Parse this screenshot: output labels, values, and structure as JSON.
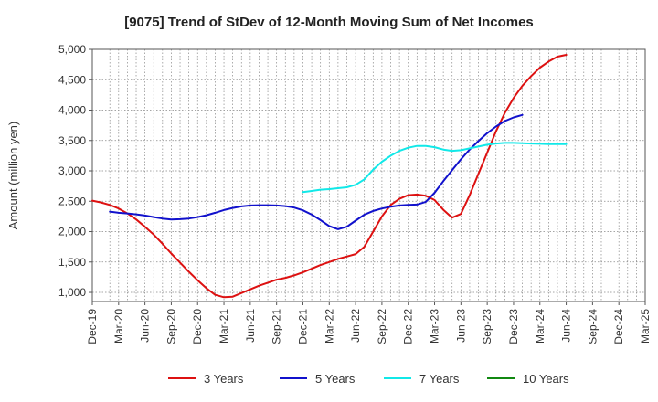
{
  "chart_data": {
    "type": "line",
    "title": "[9075]  Trend of StDev of 12-Month Moving Sum of Net Incomes",
    "xlabel": "",
    "ylabel": "Amount (million yen)",
    "x_tick_labels": [
      "Dec-19",
      "Mar-20",
      "Jun-20",
      "Sep-20",
      "Dec-20",
      "Mar-21",
      "Jun-21",
      "Sep-21",
      "Dec-21",
      "Mar-22",
      "Jun-22",
      "Sep-22",
      "Dec-22",
      "Mar-23",
      "Jun-23",
      "Sep-23",
      "Dec-23",
      "Mar-24",
      "Jun-24",
      "Sep-24",
      "Dec-24",
      "Mar-25"
    ],
    "y_tick_labels": [
      "1,000",
      "1,500",
      "2,000",
      "2,500",
      "3,000",
      "3,500",
      "4,000",
      "4,500",
      "5,000"
    ],
    "y_ticks": [
      1000,
      1500,
      2000,
      2500,
      3000,
      3500,
      4000,
      4500,
      5000
    ],
    "ylim": [
      850,
      5000
    ],
    "xlim_months": [
      0,
      63
    ],
    "grid": true,
    "legend_position": "bottom",
    "series": [
      {
        "name": "3 Years",
        "color": "#dd1111",
        "points": [
          [
            0,
            2510
          ],
          [
            1,
            2480
          ],
          [
            2,
            2440
          ],
          [
            3,
            2380
          ],
          [
            4,
            2300
          ],
          [
            5,
            2200
          ],
          [
            6,
            2080
          ],
          [
            7,
            1950
          ],
          [
            8,
            1800
          ],
          [
            9,
            1640
          ],
          [
            10,
            1490
          ],
          [
            11,
            1340
          ],
          [
            12,
            1200
          ],
          [
            13,
            1070
          ],
          [
            14,
            960
          ],
          [
            15,
            920
          ],
          [
            16,
            930
          ],
          [
            17,
            990
          ],
          [
            18,
            1050
          ],
          [
            19,
            1110
          ],
          [
            20,
            1160
          ],
          [
            21,
            1210
          ],
          [
            22,
            1240
          ],
          [
            23,
            1280
          ],
          [
            24,
            1330
          ],
          [
            25,
            1390
          ],
          [
            26,
            1450
          ],
          [
            27,
            1500
          ],
          [
            28,
            1550
          ],
          [
            29,
            1590
          ],
          [
            30,
            1630
          ],
          [
            31,
            1750
          ],
          [
            32,
            2000
          ],
          [
            33,
            2250
          ],
          [
            34,
            2440
          ],
          [
            35,
            2540
          ],
          [
            36,
            2600
          ],
          [
            37,
            2610
          ],
          [
            38,
            2590
          ],
          [
            39,
            2520
          ],
          [
            40,
            2360
          ],
          [
            41,
            2230
          ],
          [
            42,
            2290
          ],
          [
            43,
            2600
          ],
          [
            44,
            2950
          ],
          [
            45,
            3300
          ],
          [
            46,
            3650
          ],
          [
            47,
            3950
          ],
          [
            48,
            4200
          ],
          [
            49,
            4400
          ],
          [
            50,
            4560
          ],
          [
            51,
            4700
          ],
          [
            52,
            4800
          ],
          [
            53,
            4880
          ],
          [
            54,
            4910
          ]
        ]
      },
      {
        "name": "5 Years",
        "color": "#1111cc",
        "points": [
          [
            2,
            2330
          ],
          [
            3,
            2310
          ],
          [
            4,
            2300
          ],
          [
            5,
            2285
          ],
          [
            6,
            2265
          ],
          [
            7,
            2240
          ],
          [
            8,
            2215
          ],
          [
            9,
            2200
          ],
          [
            10,
            2205
          ],
          [
            11,
            2215
          ],
          [
            12,
            2240
          ],
          [
            13,
            2270
          ],
          [
            14,
            2310
          ],
          [
            15,
            2355
          ],
          [
            16,
            2390
          ],
          [
            17,
            2415
          ],
          [
            18,
            2430
          ],
          [
            19,
            2435
          ],
          [
            20,
            2435
          ],
          [
            21,
            2430
          ],
          [
            22,
            2420
          ],
          [
            23,
            2395
          ],
          [
            24,
            2350
          ],
          [
            25,
            2280
          ],
          [
            26,
            2190
          ],
          [
            27,
            2090
          ],
          [
            28,
            2040
          ],
          [
            29,
            2080
          ],
          [
            30,
            2180
          ],
          [
            31,
            2280
          ],
          [
            32,
            2340
          ],
          [
            33,
            2380
          ],
          [
            34,
            2410
          ],
          [
            35,
            2430
          ],
          [
            36,
            2440
          ],
          [
            37,
            2445
          ],
          [
            38,
            2490
          ],
          [
            39,
            2640
          ],
          [
            40,
            2830
          ],
          [
            41,
            3010
          ],
          [
            42,
            3190
          ],
          [
            43,
            3350
          ],
          [
            44,
            3490
          ],
          [
            45,
            3620
          ],
          [
            46,
            3730
          ],
          [
            47,
            3820
          ],
          [
            48,
            3880
          ],
          [
            49,
            3920
          ]
        ]
      },
      {
        "name": "7 Years",
        "color": "#11e8e8",
        "points": [
          [
            24,
            2650
          ],
          [
            25,
            2670
          ],
          [
            26,
            2690
          ],
          [
            27,
            2700
          ],
          [
            28,
            2715
          ],
          [
            29,
            2730
          ],
          [
            30,
            2770
          ],
          [
            31,
            2860
          ],
          [
            32,
            3020
          ],
          [
            33,
            3150
          ],
          [
            34,
            3250
          ],
          [
            35,
            3330
          ],
          [
            36,
            3380
          ],
          [
            37,
            3410
          ],
          [
            38,
            3410
          ],
          [
            39,
            3390
          ],
          [
            40,
            3350
          ],
          [
            41,
            3330
          ],
          [
            42,
            3340
          ],
          [
            43,
            3370
          ],
          [
            44,
            3400
          ],
          [
            45,
            3430
          ],
          [
            46,
            3450
          ],
          [
            47,
            3460
          ],
          [
            48,
            3460
          ],
          [
            49,
            3455
          ],
          [
            50,
            3450
          ],
          [
            51,
            3445
          ],
          [
            52,
            3440
          ],
          [
            53,
            3440
          ],
          [
            54,
            3440
          ]
        ]
      },
      {
        "name": "10 Years",
        "color": "#118811",
        "points": []
      }
    ]
  }
}
